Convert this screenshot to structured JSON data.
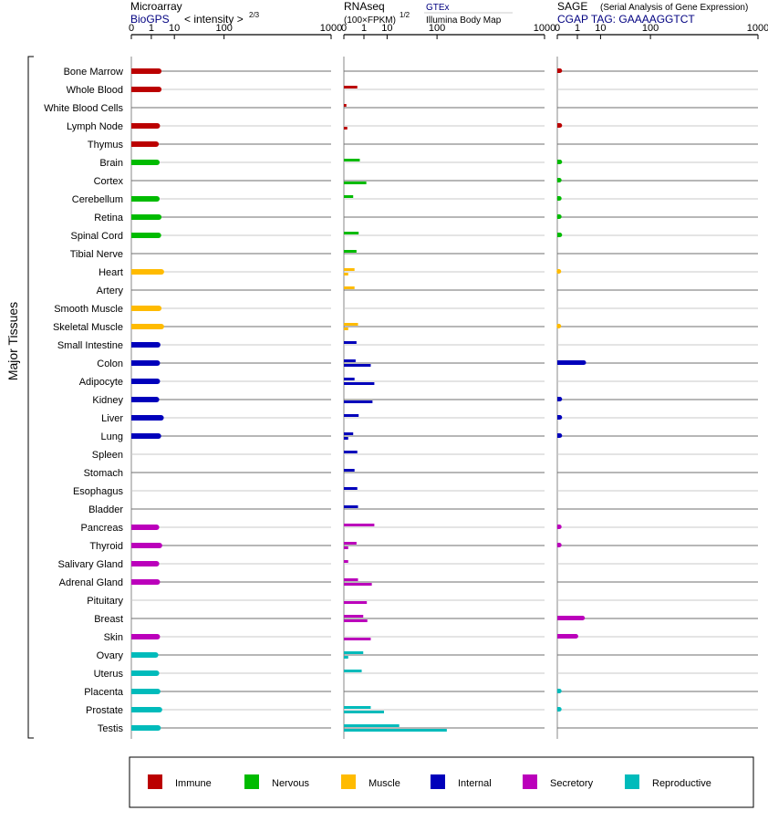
{
  "panels": [
    {
      "id": "microarray",
      "title": "Microarray",
      "subtitle_link": "BioGPS",
      "subtitle_note": "< intensity >",
      "subtitle_exp": "2/3",
      "tick_labels": [
        "0",
        "1",
        "10",
        "100",
        "1000"
      ]
    },
    {
      "id": "rnaseq",
      "title": "RNAseq",
      "subtitle_note": "(100×FPKM)",
      "subtitle_exp": "1/2",
      "legend_top": "GTEx",
      "legend_bottom": "Illumina Body Map",
      "tick_labels": [
        "0",
        "1",
        "10",
        "100",
        "1000"
      ]
    },
    {
      "id": "sage",
      "title": "SAGE",
      "title_note": "(Serial Analysis of Gene Expression)",
      "subtitle_link": "CGAP TAG: GAAAAGGTCT",
      "tick_labels": [
        "0",
        "1",
        "10",
        "100",
        "1000"
      ]
    }
  ],
  "y_axis_label": "Major Tissues",
  "colors": {
    "Immune": "#bb0000",
    "Nervous": "#00bb00",
    "Muscle": "#ffbb00",
    "Internal": "#0000bb",
    "Secretory": "#bb00bb",
    "Reproductive": "#00bbbb",
    "link": "#000080"
  },
  "legend": [
    {
      "label": "Immune",
      "color": "#bb0000"
    },
    {
      "label": "Nervous",
      "color": "#00bb00"
    },
    {
      "label": "Muscle",
      "color": "#ffbb00"
    },
    {
      "label": "Internal",
      "color": "#0000bb"
    },
    {
      "label": "Secretory",
      "color": "#bb00bb"
    },
    {
      "label": "Reproductive",
      "color": "#00bbbb"
    }
  ],
  "chart_data": {
    "type": "bar",
    "scale": "power, tick values 0, 1, 10, 100, 1000",
    "categories": [
      "Bone Marrow",
      "Whole Blood",
      "White Blood Cells",
      "Lymph Node",
      "Thymus",
      "Brain",
      "Cortex",
      "Cerebellum",
      "Retina",
      "Spinal Cord",
      "Tibial Nerve",
      "Heart",
      "Artery",
      "Smooth Muscle",
      "Skeletal Muscle",
      "Small Intestine",
      "Colon",
      "Adipocyte",
      "Kidney",
      "Liver",
      "Lung",
      "Spleen",
      "Stomach",
      "Esophagus",
      "Bladder",
      "Pancreas",
      "Thyroid",
      "Salivary Gland",
      "Adrenal Gland",
      "Pituitary",
      "Breast",
      "Skin",
      "Ovary",
      "Uterus",
      "Placenta",
      "Prostate",
      "Testis"
    ],
    "groups": [
      "Immune",
      "Immune",
      "Immune",
      "Immune",
      "Immune",
      "Nervous",
      "Nervous",
      "Nervous",
      "Nervous",
      "Nervous",
      "Nervous",
      "Muscle",
      "Muscle",
      "Muscle",
      "Muscle",
      "Internal",
      "Internal",
      "Internal",
      "Internal",
      "Internal",
      "Internal",
      "Internal",
      "Internal",
      "Internal",
      "Internal",
      "Secretory",
      "Secretory",
      "Secretory",
      "Secretory",
      "Secretory",
      "Secretory",
      "Secretory",
      "Reproductive",
      "Reproductive",
      "Reproductive",
      "Reproductive",
      "Reproductive"
    ],
    "series": [
      {
        "name": "BioGPS",
        "panel": "microarray",
        "values": [
          2.6,
          2.6,
          null,
          2.2,
          1.9,
          2.1,
          null,
          2.1,
          2.6,
          2.5,
          null,
          3.4,
          null,
          2.6,
          3.4,
          2.3,
          2.2,
          2.2,
          2.0,
          3.3,
          2.5,
          null,
          null,
          null,
          null,
          2.0,
          2.8,
          2.0,
          2.2,
          null,
          null,
          2.2,
          1.8,
          2.0,
          2.3,
          2.8,
          2.4
        ]
      },
      {
        "name": "GTEx",
        "panel": "rnaseq",
        "values": [
          null,
          0.3,
          0.002,
          null,
          null,
          0.5,
          null,
          0.1,
          null,
          0.4,
          0.25,
          0.15,
          0.15,
          null,
          0.35,
          0.25,
          0.2,
          0.15,
          null,
          0.4,
          0.1,
          0.3,
          0.15,
          0.3,
          0.35,
          3.5,
          0.25,
          0.01,
          0.35,
          null,
          0.9,
          null,
          0.9,
          0.7,
          null,
          2.4,
          21
        ]
      },
      {
        "name": "Illumina Body Map",
        "panel": "rnaseq",
        "values": [
          null,
          null,
          null,
          0.005,
          null,
          null,
          1.4,
          null,
          null,
          null,
          null,
          0.01,
          null,
          null,
          0.01,
          null,
          2.4,
          3.5,
          2.9,
          null,
          0.01,
          null,
          null,
          null,
          null,
          null,
          0.01,
          null,
          2.7,
          1.5,
          1.6,
          2.4,
          0.01,
          null,
          null,
          8,
          135
        ]
      },
      {
        "name": "CGAP TAG: GAAAAGGTCT",
        "panel": "sage",
        "values": [
          0.002,
          null,
          null,
          0.002,
          null,
          0.002,
          0.001,
          0.001,
          0.001,
          0.002,
          null,
          0.0005,
          null,
          null,
          0.0005,
          null,
          2.3,
          null,
          0.002,
          0.002,
          0.002,
          null,
          null,
          null,
          null,
          0.001,
          0.001,
          null,
          null,
          null,
          2.0,
          0.8,
          null,
          null,
          0.001,
          0.001,
          null
        ]
      }
    ]
  }
}
